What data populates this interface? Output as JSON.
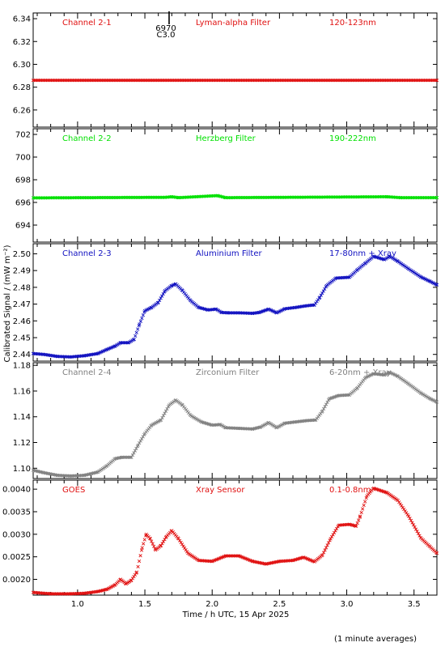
{
  "chart_data": {
    "type": "scatter",
    "x_label": "Time / h UTC, 15 Apr 2025",
    "y_label": "Calibrated Signal / (mW m⁻²)",
    "footnote": "(1 minute averages)",
    "x_range": [
      0.67,
      3.67
    ],
    "x_ticks": [
      1.0,
      1.5,
      2.0,
      2.5,
      3.0,
      3.5
    ],
    "x_tick_labels": [
      "1.0",
      "1.5",
      "2.0",
      "2.5",
      "3.0",
      "3.5"
    ],
    "marker_annotation": {
      "x": 1.68,
      "lines": [
        "6970",
        "C3.0"
      ]
    },
    "panels": [
      {
        "id": "ch21",
        "labels": [
          "Channel 2-1",
          "Lyman-alpha Filter",
          "120-123nm"
        ],
        "color": "#e01010",
        "y_range": [
          6.245,
          6.345
        ],
        "y_ticks": [
          6.26,
          6.28,
          6.3,
          6.32,
          6.34
        ],
        "y_tick_labels": [
          "6.26",
          "6.28",
          "6.30",
          "6.32",
          "6.34"
        ],
        "points": [
          [
            0.67,
            6.286
          ],
          [
            3.67,
            6.286
          ]
        ]
      },
      {
        "id": "ch22",
        "labels": [
          "Channel 2-2",
          "Herzberg Filter",
          "190-222nm"
        ],
        "color": "#00e000",
        "y_range": [
          692.5,
          702.5
        ],
        "y_ticks": [
          694,
          696,
          698,
          700,
          702
        ],
        "y_tick_labels": [
          "694",
          "696",
          "698",
          "700",
          "702"
        ],
        "points": [
          [
            0.67,
            696.4
          ],
          [
            1.65,
            696.45
          ],
          [
            1.7,
            696.5
          ],
          [
            1.75,
            696.42
          ],
          [
            2.04,
            696.6
          ],
          [
            2.1,
            696.42
          ],
          [
            3.3,
            696.5
          ],
          [
            3.4,
            696.42
          ],
          [
            3.67,
            696.42
          ]
        ]
      },
      {
        "id": "ch23",
        "labels": [
          "Channel 2-3",
          "Aluminium Filter",
          "17-80nm + Xray"
        ],
        "color": "#1010c0",
        "y_range": [
          2.436,
          2.506
        ],
        "y_ticks": [
          2.44,
          2.45,
          2.46,
          2.47,
          2.48,
          2.49,
          2.5
        ],
        "y_tick_labels": [
          "2.44",
          "2.45",
          "2.46",
          "2.47",
          "2.48",
          "2.49",
          "2.50"
        ],
        "points": [
          [
            0.67,
            2.4405
          ],
          [
            0.75,
            2.44
          ],
          [
            0.85,
            2.4388
          ],
          [
            0.95,
            2.4385
          ],
          [
            1.05,
            2.4392
          ],
          [
            1.15,
            2.4405
          ],
          [
            1.22,
            2.443
          ],
          [
            1.28,
            2.445
          ],
          [
            1.32,
            2.447
          ],
          [
            1.38,
            2.447
          ],
          [
            1.42,
            2.449
          ],
          [
            1.46,
            2.458
          ],
          [
            1.5,
            2.466
          ],
          [
            1.55,
            2.468
          ],
          [
            1.6,
            2.471
          ],
          [
            1.65,
            2.478
          ],
          [
            1.7,
            2.481
          ],
          [
            1.73,
            2.482
          ],
          [
            1.78,
            2.478
          ],
          [
            1.84,
            2.472
          ],
          [
            1.9,
            2.468
          ],
          [
            1.97,
            2.4665
          ],
          [
            2.03,
            2.467
          ],
          [
            2.07,
            2.465
          ],
          [
            2.12,
            2.4648
          ],
          [
            2.2,
            2.4648
          ],
          [
            2.3,
            2.4645
          ],
          [
            2.35,
            2.465
          ],
          [
            2.42,
            2.467
          ],
          [
            2.48,
            2.4648
          ],
          [
            2.54,
            2.4672
          ],
          [
            2.62,
            2.468
          ],
          [
            2.7,
            2.469
          ],
          [
            2.76,
            2.4695
          ],
          [
            2.8,
            2.474
          ],
          [
            2.85,
            2.481
          ],
          [
            2.92,
            2.4855
          ],
          [
            3.02,
            2.486
          ],
          [
            3.08,
            2.4905
          ],
          [
            3.14,
            2.4945
          ],
          [
            3.2,
            2.4985
          ],
          [
            3.28,
            2.4965
          ],
          [
            3.32,
            2.4985
          ],
          [
            3.38,
            2.4955
          ],
          [
            3.46,
            2.491
          ],
          [
            3.55,
            2.4862
          ],
          [
            3.62,
            2.4835
          ],
          [
            3.67,
            2.4815
          ]
        ]
      },
      {
        "id": "ch24",
        "labels": [
          "Channel 2-4",
          "Zirconium Filter",
          "6-20nm + Xray"
        ],
        "color": "#808080",
        "y_range": [
          1.092,
          1.182
        ],
        "y_ticks": [
          1.1,
          1.12,
          1.14,
          1.16,
          1.18
        ],
        "y_tick_labels": [
          "1.10",
          "1.12",
          "1.14",
          "1.16",
          "1.18"
        ],
        "points": [
          [
            0.67,
            1.0985
          ],
          [
            0.75,
            1.0965
          ],
          [
            0.85,
            1.0945
          ],
          [
            0.95,
            1.094
          ],
          [
            1.05,
            1.0945
          ],
          [
            1.15,
            1.097
          ],
          [
            1.22,
            1.102
          ],
          [
            1.28,
            1.1075
          ],
          [
            1.33,
            1.1085
          ],
          [
            1.4,
            1.1085
          ],
          [
            1.45,
            1.118
          ],
          [
            1.5,
            1.127
          ],
          [
            1.55,
            1.1335
          ],
          [
            1.62,
            1.1375
          ],
          [
            1.68,
            1.149
          ],
          [
            1.73,
            1.153
          ],
          [
            1.78,
            1.149
          ],
          [
            1.84,
            1.141
          ],
          [
            1.92,
            1.136
          ],
          [
            2.0,
            1.1335
          ],
          [
            2.06,
            1.134
          ],
          [
            2.1,
            1.1315
          ],
          [
            2.2,
            1.131
          ],
          [
            2.3,
            1.1305
          ],
          [
            2.36,
            1.132
          ],
          [
            2.42,
            1.1355
          ],
          [
            2.48,
            1.1315
          ],
          [
            2.54,
            1.135
          ],
          [
            2.62,
            1.136
          ],
          [
            2.7,
            1.137
          ],
          [
            2.77,
            1.1375
          ],
          [
            2.82,
            1.1445
          ],
          [
            2.87,
            1.154
          ],
          [
            2.94,
            1.1565
          ],
          [
            3.02,
            1.157
          ],
          [
            3.08,
            1.1625
          ],
          [
            3.14,
            1.1705
          ],
          [
            3.2,
            1.1735
          ],
          [
            3.28,
            1.1725
          ],
          [
            3.32,
            1.1745
          ],
          [
            3.38,
            1.1715
          ],
          [
            3.46,
            1.1655
          ],
          [
            3.55,
            1.1585
          ],
          [
            3.62,
            1.154
          ],
          [
            3.67,
            1.1515
          ]
        ]
      },
      {
        "id": "goes",
        "labels": [
          "GOES",
          "Xray Sensor",
          "0.1-0.8nm"
        ],
        "color": "#e01010",
        "y_range": [
          0.00165,
          0.0042
        ],
        "y_ticks": [
          0.002,
          0.0025,
          0.003,
          0.0035,
          0.004
        ],
        "y_tick_labels": [
          "0.0020",
          "0.0025",
          "0.0030",
          "0.0035",
          "0.0040"
        ],
        "points": [
          [
            0.67,
            0.00171
          ],
          [
            0.8,
            0.00168
          ],
          [
            0.95,
            0.00168
          ],
          [
            1.05,
            0.00169
          ],
          [
            1.15,
            0.00173
          ],
          [
            1.22,
            0.00178
          ],
          [
            1.28,
            0.00188
          ],
          [
            1.32,
            0.002
          ],
          [
            1.36,
            0.0019
          ],
          [
            1.4,
            0.00198
          ],
          [
            1.44,
            0.00216
          ],
          [
            1.48,
            0.0027
          ],
          [
            1.51,
            0.003
          ],
          [
            1.54,
            0.0029
          ],
          [
            1.58,
            0.00265
          ],
          [
            1.62,
            0.00275
          ],
          [
            1.66,
            0.00295
          ],
          [
            1.7,
            0.00308
          ],
          [
            1.75,
            0.0029
          ],
          [
            1.82,
            0.00258
          ],
          [
            1.9,
            0.00242
          ],
          [
            2.0,
            0.0024
          ],
          [
            2.1,
            0.00252
          ],
          [
            2.2,
            0.00252
          ],
          [
            2.3,
            0.0024
          ],
          [
            2.4,
            0.00234
          ],
          [
            2.5,
            0.0024
          ],
          [
            2.6,
            0.00242
          ],
          [
            2.68,
            0.00249
          ],
          [
            2.76,
            0.00239
          ],
          [
            2.82,
            0.00254
          ],
          [
            2.88,
            0.0029
          ],
          [
            2.94,
            0.0032
          ],
          [
            3.02,
            0.00322
          ],
          [
            3.07,
            0.00318
          ],
          [
            3.1,
            0.0034
          ],
          [
            3.15,
            0.00385
          ],
          [
            3.2,
            0.00402
          ],
          [
            3.3,
            0.00392
          ],
          [
            3.38,
            0.00375
          ],
          [
            3.46,
            0.0034
          ],
          [
            3.55,
            0.00292
          ],
          [
            3.62,
            0.00272
          ],
          [
            3.67,
            0.00258
          ]
        ]
      }
    ]
  }
}
